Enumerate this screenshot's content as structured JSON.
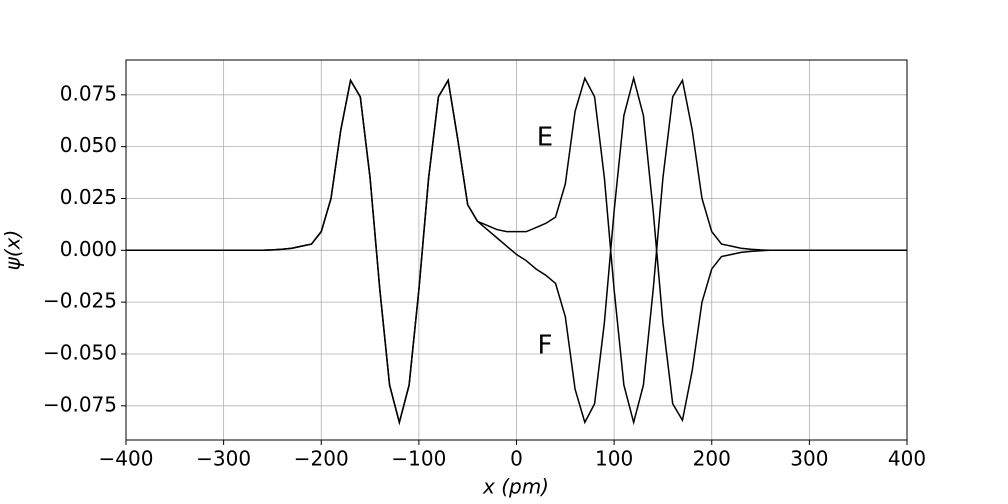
{
  "chart_data": {
    "type": "line",
    "xlabel": "x (pm)",
    "ylabel": "ψ(x)",
    "x": [
      -400,
      -300,
      -260,
      -250,
      -240,
      -230,
      -220,
      -210,
      -200,
      -190,
      -180,
      -170,
      -160,
      -150,
      -140,
      -130,
      -120,
      -110,
      -100,
      -90,
      -80,
      -70,
      -60,
      -50,
      -40,
      -30,
      -20,
      -10,
      0,
      10,
      20,
      30,
      40,
      50,
      60,
      70,
      80,
      90,
      100,
      110,
      120,
      130,
      140,
      150,
      160,
      170,
      180,
      190,
      200,
      210,
      220,
      230,
      240,
      250,
      260,
      300,
      400
    ],
    "series": [
      {
        "name": "E",
        "color": "#000000",
        "values": [
          0,
          0,
          0,
          0.0002,
          0.0005,
          0.001,
          0.002,
          0.003,
          0.009,
          0.025,
          0.058,
          0.082,
          0.074,
          0.035,
          -0.019,
          -0.065,
          -0.083,
          -0.065,
          -0.019,
          0.035,
          0.074,
          0.082,
          0.053,
          0.022,
          0.014,
          0.012,
          0.01,
          0.009,
          0.009,
          0.009,
          0.011,
          0.013,
          0.016,
          0.032,
          0.067,
          0.083,
          0.074,
          0.035,
          -0.019,
          -0.065,
          -0.083,
          -0.065,
          -0.019,
          0.035,
          0.074,
          0.082,
          0.058,
          0.025,
          0.009,
          0.003,
          0.002,
          0.001,
          0.0005,
          0.0002,
          0,
          0,
          0
        ]
      },
      {
        "name": "F",
        "color": "#000000",
        "values": [
          0,
          0,
          0,
          0.0002,
          0.0005,
          0.001,
          0.002,
          0.003,
          0.009,
          0.025,
          0.058,
          0.082,
          0.074,
          0.035,
          -0.019,
          -0.065,
          -0.083,
          -0.065,
          -0.019,
          0.035,
          0.074,
          0.082,
          0.053,
          0.022,
          0.014,
          0.01,
          0.006,
          0.002,
          -0.002,
          -0.005,
          -0.009,
          -0.012,
          -0.016,
          -0.032,
          -0.067,
          -0.083,
          -0.074,
          -0.035,
          0.019,
          0.065,
          0.083,
          0.065,
          0.019,
          -0.035,
          -0.074,
          -0.082,
          -0.058,
          -0.025,
          -0.009,
          -0.003,
          -0.002,
          -0.001,
          -0.0005,
          -0.0002,
          0,
          0,
          0
        ]
      }
    ],
    "xlim": [
      -400,
      400
    ],
    "xticks": [
      {
        "value": -400,
        "label": "−400"
      },
      {
        "value": -300,
        "label": "−300"
      },
      {
        "value": -200,
        "label": "−200"
      },
      {
        "value": -100,
        "label": "−100"
      },
      0,
      100,
      200,
      300,
      400
    ],
    "ylim": [
      -0.0915,
      0.0918
    ],
    "yticks": [
      {
        "value": -0.075,
        "label": "−0.075"
      },
      {
        "value": -0.05,
        "label": "−0.050"
      },
      {
        "value": -0.025,
        "label": "−0.025"
      },
      {
        "value": 0,
        "label": "0.000"
      },
      {
        "value": 0.025,
        "label": "0.025"
      },
      {
        "value": 0.05,
        "label": "0.050"
      },
      {
        "value": 0.075,
        "label": "0.075"
      }
    ],
    "grid": true
  }
}
